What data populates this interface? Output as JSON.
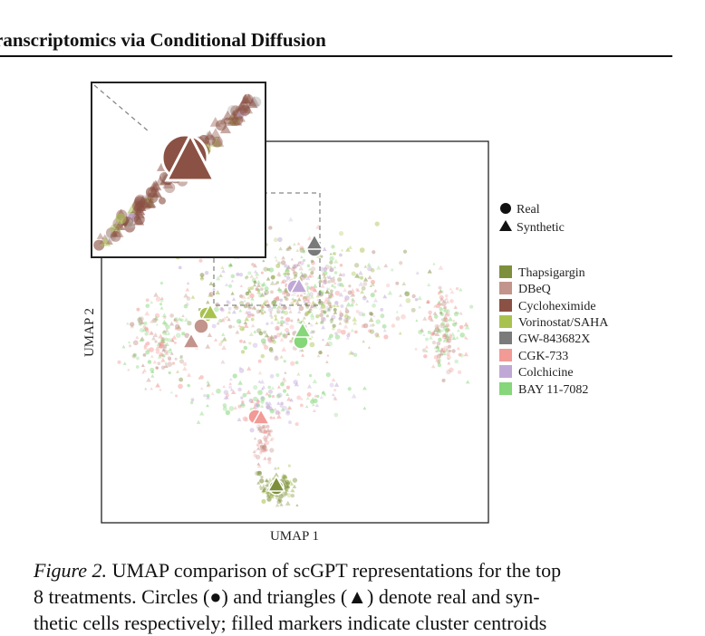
{
  "header": {
    "title": "ranscriptomics via Conditional Diffusion"
  },
  "figure": {
    "xlabel": "UMAP 1",
    "ylabel": "UMAP 2",
    "marker_legend": [
      {
        "label": "Real",
        "shape": "circle"
      },
      {
        "label": "Synthetic",
        "shape": "triangle"
      }
    ],
    "treatments": [
      {
        "label": "Thapsigargin",
        "color": "#7d8f3c"
      },
      {
        "label": "DBeQ",
        "color": "#c2948b"
      },
      {
        "label": "Cycloheximide",
        "color": "#8b5144"
      },
      {
        "label": "Vorinostat/SAHA",
        "color": "#a9c24f"
      },
      {
        "label": "GW-843682X",
        "color": "#7a7a7a"
      },
      {
        "label": "CGK-733",
        "color": "#f29a96"
      },
      {
        "label": "Colchicine",
        "color": "#c0a8d6"
      },
      {
        "label": "BAY 11-7082",
        "color": "#86d67a"
      }
    ]
  },
  "caption": {
    "label": "Figure 2.",
    "line1": " UMAP comparison of scGPT representations for the top",
    "line2": "8 treatments. Circles (●) and triangles (▲) denote real and syn-",
    "line3": "thetic cells respectively; filled markers indicate cluster centroids"
  }
}
